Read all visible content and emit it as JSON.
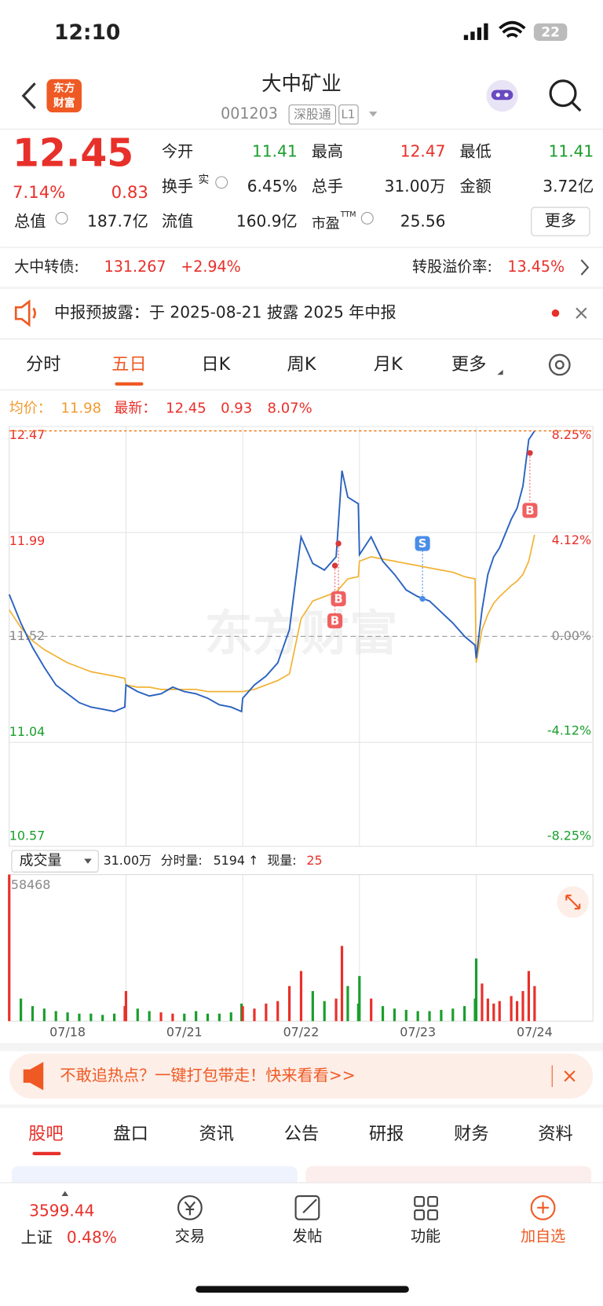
{
  "status": {
    "time": "12:10",
    "battery": "22"
  },
  "header": {
    "logo": [
      "东方",
      "财富"
    ],
    "title": "大中矿业",
    "code": "001203",
    "tags": [
      "深股通",
      "L1"
    ]
  },
  "quote": {
    "price": "12.45",
    "change_pct": "7.14%",
    "change": "0.83",
    "more": "更多",
    "fields": [
      {
        "label": "今开",
        "value": "11.41"
      },
      {
        "label": "最高",
        "value": "12.47"
      },
      {
        "label": "最低",
        "value": "11.41"
      },
      {
        "label": "换手",
        "sup": "实",
        "value": "6.45%"
      },
      {
        "label": "总手",
        "value": "31.00万"
      },
      {
        "label": "金额",
        "value": "3.72亿"
      },
      {
        "label": "总值",
        "value": "187.7亿"
      },
      {
        "label": "流值",
        "value": "160.9亿"
      },
      {
        "label": "市盈",
        "sup": "TTM",
        "value": "25.56"
      }
    ]
  },
  "bond": {
    "label": "大中转债:",
    "price": "131.267",
    "change": "+2.94%",
    "premium_label": "转股溢价率:",
    "premium": "13.45%"
  },
  "notice": "中报预披露：于 2025-08-21 披露 2025 年中报",
  "chart_tabs": [
    "分时",
    "五日",
    "日K",
    "周K",
    "月K",
    "更多"
  ],
  "info": {
    "avg_label": "均价：",
    "avg": "11.98",
    "latest_label": "最新：",
    "latest": "12.45",
    "change": "0.93",
    "change_pct": "8.07%"
  },
  "volume_info": {
    "selector": "成交量",
    "total": "31.00万",
    "minute_label": "分时量:",
    "minute": "5194",
    "arrow": "↑",
    "current_label": "现量:",
    "current": "25"
  },
  "chart_data": [
    {
      "type": "line",
      "watermark": "东方财富",
      "base": 11.52,
      "up_color": "#e8302a",
      "down_color": "#1a9e2c",
      "xlim": [
        0,
        5
      ],
      "xgrid": [
        1,
        2,
        3,
        4
      ],
      "ylim": [
        10.57,
        12.47
      ],
      "yticks": [
        12.47,
        11.99,
        11.52,
        11.04,
        10.57
      ],
      "y2lim": [
        -8.25,
        8.25
      ],
      "y2ticks": [
        {
          "value": 8.25,
          "label": "8.25%"
        },
        {
          "value": 4.12,
          "label": "4.12%"
        },
        {
          "value": 0,
          "label": "0.00%"
        },
        {
          "value": -4.12,
          "label": "-4.12%"
        },
        {
          "value": -8.25,
          "label": "-8.25%"
        }
      ],
      "x": [
        0,
        0.1,
        0.2,
        0.3,
        0.4,
        0.5,
        0.6,
        0.7,
        0.8,
        0.9,
        0.99,
        1,
        1.1,
        1.2,
        1.3,
        1.4,
        1.5,
        1.6,
        1.7,
        1.8,
        1.9,
        1.99,
        2,
        2.1,
        2.2,
        2.3,
        2.4,
        2.5,
        2.6,
        2.7,
        2.8,
        2.85,
        2.9,
        2.99,
        3,
        3.1,
        3.2,
        3.3,
        3.4,
        3.5,
        3.6,
        3.7,
        3.8,
        3.9,
        3.99,
        4,
        4.05,
        4.1,
        4.15,
        4.2,
        4.3,
        4.35,
        4.4,
        4.45,
        4.5
      ],
      "series": [
        {
          "color": "#2a62c0",
          "values": [
            11.71,
            11.58,
            11.47,
            11.38,
            11.3,
            11.26,
            11.22,
            11.2,
            11.19,
            11.18,
            11.2,
            11.3,
            11.27,
            11.25,
            11.26,
            11.29,
            11.27,
            11.26,
            11.24,
            11.21,
            11.2,
            11.18,
            11.24,
            11.3,
            11.34,
            11.4,
            11.55,
            11.97,
            11.85,
            11.82,
            11.88,
            12.27,
            12.15,
            12.12,
            11.89,
            11.97,
            11.86,
            11.8,
            11.73,
            11.7,
            11.68,
            11.63,
            11.58,
            11.52,
            11.48,
            11.42,
            11.64,
            11.8,
            11.88,
            11.92,
            12.05,
            12.1,
            12.2,
            12.41,
            12.45
          ]
        },
        {
          "color": "#f2b233",
          "values": [
            11.64,
            11.56,
            11.5,
            11.46,
            11.43,
            11.4,
            11.38,
            11.36,
            11.35,
            11.34,
            11.33,
            11.3,
            11.29,
            11.29,
            11.28,
            11.28,
            11.28,
            11.28,
            11.27,
            11.27,
            11.27,
            11.27,
            11.27,
            11.28,
            11.3,
            11.32,
            11.35,
            11.6,
            11.68,
            11.7,
            11.72,
            11.75,
            11.78,
            11.79,
            11.86,
            11.88,
            11.87,
            11.86,
            11.85,
            11.84,
            11.83,
            11.82,
            11.81,
            11.79,
            11.78,
            11.4,
            11.55,
            11.62,
            11.67,
            11.7,
            11.75,
            11.77,
            11.8,
            11.86,
            11.98
          ]
        }
      ],
      "markers": [
        {
          "label": "B",
          "x": 2.82,
          "price": 11.94,
          "badge": 11.69
        },
        {
          "label": "B",
          "x": 2.79,
          "price": 11.84,
          "badge": 11.59
        },
        {
          "label": "S",
          "x": 3.54,
          "price": 11.69,
          "badge": 11.94
        },
        {
          "label": "B",
          "x": 4.46,
          "price": 12.35,
          "badge": 12.09
        }
      ]
    },
    {
      "type": "bar",
      "xlim": [
        0,
        5
      ],
      "xgrid": [
        1,
        2,
        3,
        4
      ],
      "ylim": [
        0,
        58468
      ],
      "yticks": [
        58468
      ],
      "xticks": [
        {
          "value": 0.5,
          "label": "07/18"
        },
        {
          "value": 1.5,
          "label": "07/21"
        },
        {
          "value": 2.5,
          "label": "07/22"
        },
        {
          "value": 3.5,
          "label": "07/23"
        },
        {
          "value": 4.5,
          "label": "07/24"
        }
      ],
      "x": [
        0,
        0.1,
        0.2,
        0.3,
        0.4,
        0.5,
        0.6,
        0.7,
        0.8,
        0.9,
        0.99,
        1,
        1.1,
        1.2,
        1.3,
        1.4,
        1.5,
        1.6,
        1.7,
        1.8,
        1.9,
        1.99,
        2,
        2.1,
        2.2,
        2.3,
        2.4,
        2.5,
        2.6,
        2.7,
        2.8,
        2.85,
        2.9,
        2.99,
        3,
        3.1,
        3.2,
        3.3,
        3.4,
        3.5,
        3.6,
        3.7,
        3.8,
        3.9,
        3.99,
        4,
        4.05,
        4.1,
        4.15,
        4.2,
        4.3,
        4.35,
        4.4,
        4.45,
        4.5
      ],
      "values": [
        58468,
        9000,
        6000,
        5000,
        4000,
        3500,
        3000,
        3000,
        2500,
        3000,
        6000,
        12000,
        5000,
        4000,
        3500,
        3000,
        3000,
        4000,
        3000,
        3000,
        3500,
        7000,
        6000,
        5000,
        7000,
        8000,
        14000,
        20000,
        12000,
        8000,
        9000,
        30000,
        14000,
        7000,
        18000,
        9000,
        6000,
        5000,
        4500,
        4000,
        4000,
        4500,
        5000,
        6000,
        9000,
        25000,
        15000,
        9000,
        7000,
        8000,
        10000,
        8000,
        12000,
        20000,
        14000
      ]
    }
  ],
  "ad": "不敢追热点？一键打包带走！快来看看>>",
  "info_tabs": [
    "股吧",
    "盘口",
    "资讯",
    "公告",
    "研报",
    "财务",
    "资料"
  ],
  "nav": {
    "index_value": "3599.44",
    "index_name": "上证",
    "index_change": "0.48%",
    "items": [
      "交易",
      "发帖",
      "功能",
      "加自选"
    ]
  }
}
